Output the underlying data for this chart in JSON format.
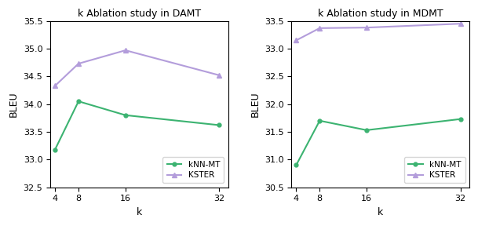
{
  "k_values": [
    4,
    8,
    16,
    32
  ],
  "damt": {
    "title": "k Ablation study in DAMT",
    "knn_mt": [
      33.18,
      34.05,
      33.8,
      33.62
    ],
    "kster": [
      34.33,
      34.73,
      34.97,
      34.52
    ],
    "ylim": [
      32.5,
      35.5
    ],
    "yticks": [
      32.5,
      33.0,
      33.5,
      34.0,
      34.5,
      35.0,
      35.5
    ]
  },
  "mdmt": {
    "title": "k Ablation study in MDMT",
    "knn_mt": [
      30.9,
      31.7,
      31.53,
      31.73
    ],
    "kster": [
      33.15,
      33.37,
      33.38,
      33.45
    ],
    "ylim": [
      30.5,
      33.5
    ],
    "yticks": [
      30.5,
      31.0,
      31.5,
      32.0,
      32.5,
      33.0,
      33.5
    ]
  },
  "knn_color": "#3cb371",
  "kster_color": "#b39ddb",
  "xlabel": "k",
  "ylabel": "BLEU",
  "legend_knn": "kNN-MT",
  "legend_kster": "KSTER",
  "figsize": [
    6.09,
    2.88
  ],
  "dpi": 100
}
